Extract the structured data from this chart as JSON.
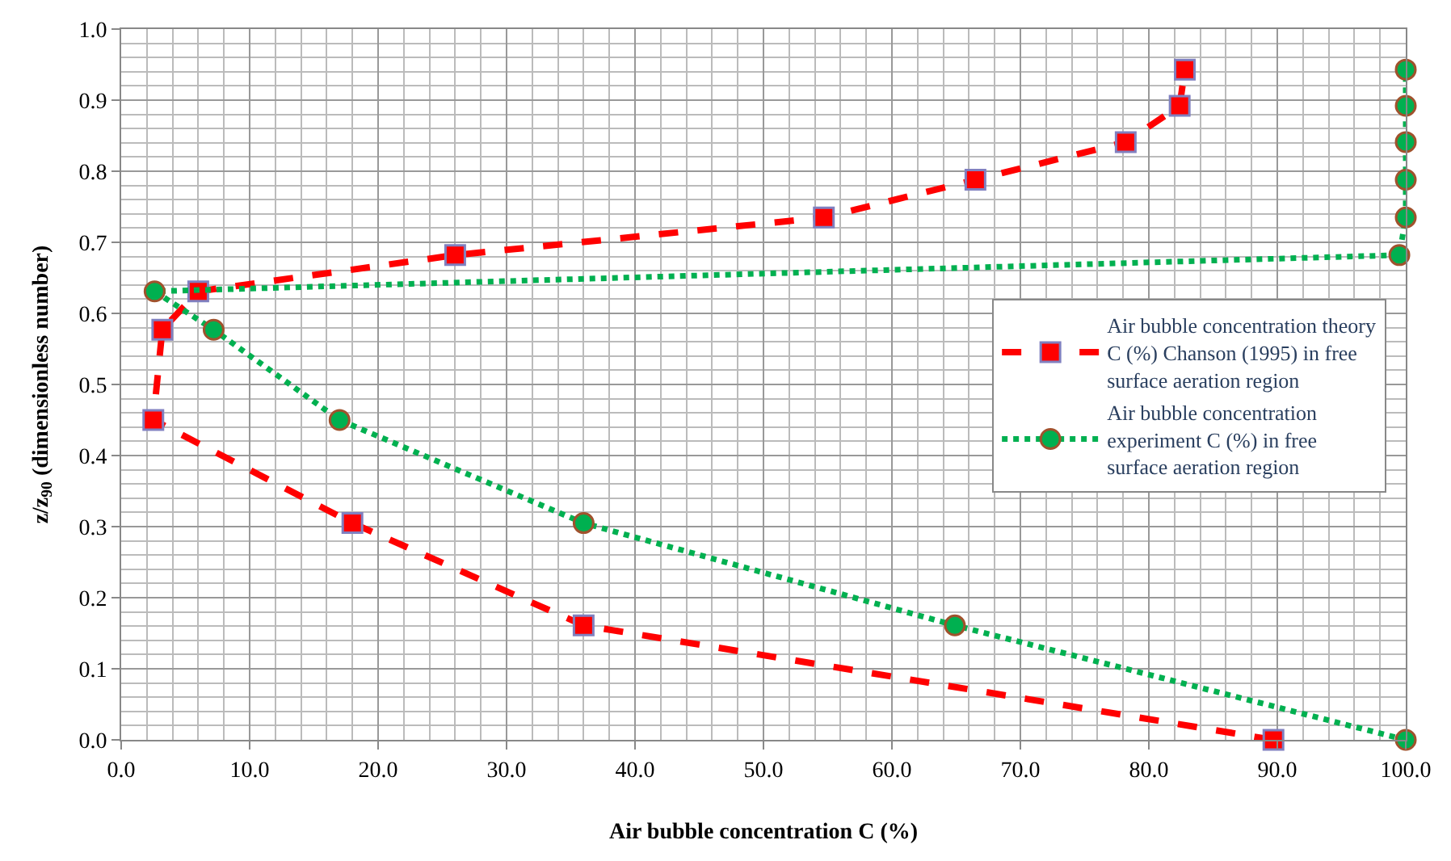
{
  "chart_data": {
    "type": "line",
    "xlabel": "Air bubble concentration C (%)",
    "ylabel": "z/z$_{90}$ (dimensionless number)",
    "xlim": [
      0,
      100
    ],
    "ylim": [
      0,
      1
    ],
    "xticks": [
      {
        "value": 0,
        "label": "0.0"
      },
      {
        "value": 10,
        "label": "10.0"
      },
      {
        "value": 20,
        "label": "20.0"
      },
      {
        "value": 30,
        "label": "30.0"
      },
      {
        "value": 40,
        "label": "40.0"
      },
      {
        "value": 50,
        "label": "50.0"
      },
      {
        "value": 60,
        "label": "60.0"
      },
      {
        "value": 70,
        "label": "70.0"
      },
      {
        "value": 80,
        "label": "80.0"
      },
      {
        "value": 90,
        "label": "90.0"
      },
      {
        "value": 100,
        "label": "100.0"
      }
    ],
    "yticks": [
      {
        "value": 0,
        "label": "0.0"
      },
      {
        "value": 0.1,
        "label": "0.1"
      },
      {
        "value": 0.2,
        "label": "0.2"
      },
      {
        "value": 0.3,
        "label": "0.3"
      },
      {
        "value": 0.4,
        "label": "0.4"
      },
      {
        "value": 0.5,
        "label": "0.5"
      },
      {
        "value": 0.6,
        "label": "0.6"
      },
      {
        "value": 0.7,
        "label": "0.7"
      },
      {
        "value": 0.8,
        "label": "0.8"
      },
      {
        "value": 0.9,
        "label": "0.9"
      },
      {
        "value": 1,
        "label": "1.0"
      }
    ],
    "grid": true,
    "legend": "right",
    "series": [
      {
        "name": "Air bubble concentration theory C (%) Chanson (1995) in free surface aeration region",
        "color": "#ff0000",
        "marker": "square",
        "line_style": "dashed",
        "x": [
          89.7,
          36.0,
          18.0,
          2.5,
          3.2,
          6.0,
          26.0,
          54.7,
          66.5,
          78.2,
          82.4,
          82.8
        ],
        "values": [
          0.0,
          0.161,
          0.305,
          0.45,
          0.577,
          0.631,
          0.682,
          0.735,
          0.788,
          0.841,
          0.892,
          0.943
        ]
      },
      {
        "name": "Air bubble concentration experiment C (%) in free surface aeration region",
        "color": "#00b050",
        "marker": "circle",
        "line_style": "dotted",
        "x": [
          100,
          64.9,
          36.0,
          17.0,
          7.2,
          2.6,
          99.5,
          100,
          100,
          100,
          100,
          100
        ],
        "values": [
          0.0,
          0.161,
          0.305,
          0.45,
          0.577,
          0.631,
          0.682,
          0.735,
          0.788,
          0.841,
          0.892,
          0.943
        ]
      }
    ]
  }
}
